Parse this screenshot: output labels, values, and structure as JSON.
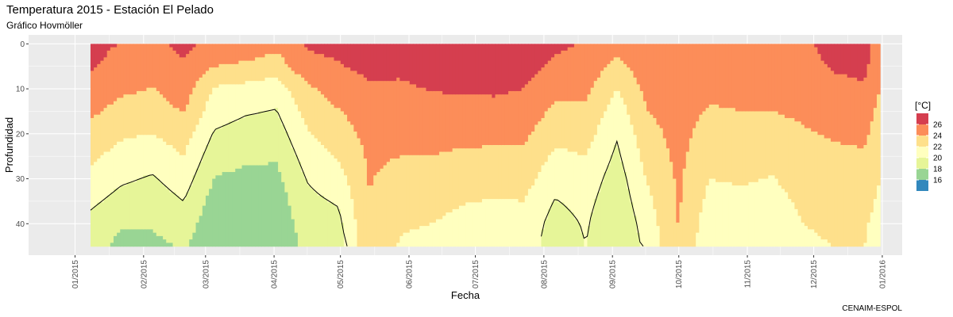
{
  "chart_data": {
    "type": "heatmap",
    "subtype": "filled-contour (Hovmöller)",
    "title": "Temperatura 2015 - Estación El Pelado",
    "subtitle": "Gráfico Hovmöller",
    "xlabel": "Fecha",
    "ylabel": "Profundidad",
    "caption": "CENAIM-ESPOL",
    "x_ticks": [
      "01/2015",
      "02/2015",
      "03/2015",
      "04/2015",
      "05/2015",
      "06/2015",
      "07/2015",
      "08/2015",
      "09/2015",
      "10/2015",
      "11/2015",
      "12/2015",
      "01/2016"
    ],
    "y_ticks": [
      0,
      10,
      20,
      30,
      40
    ],
    "y_reversed": true,
    "xlim": [
      "2014-12-11",
      "2016-01-10"
    ],
    "ylim": [
      47,
      -2
    ],
    "data_x_range": [
      "2015-01-08",
      "2015-12-31"
    ],
    "data_y_range": [
      0,
      45
    ],
    "grid": true,
    "legend": {
      "title": "[°C]",
      "position": "right",
      "labels": [
        "26",
        "24",
        "22",
        "20",
        "18",
        "16"
      ],
      "colors": [
        "#D53E4F",
        "#FC8D59",
        "#FEE08B",
        "#FFFFBF",
        "#E6F598",
        "#99D594",
        "#3288BD"
      ]
    },
    "band_colors": [
      "#3288BD",
      "#99D594",
      "#E6F598",
      "#FFFFBF",
      "#FEE08B",
      "#FC8D59",
      "#D53E4F"
    ],
    "band_bounds": [
      16,
      18,
      20,
      22,
      24,
      26
    ],
    "contour_level": 20,
    "times": [
      "2015-01-08",
      "2015-01-22",
      "2015-02-05",
      "2015-02-19",
      "2015-03-05",
      "2015-03-19",
      "2015-04-02",
      "2015-04-16",
      "2015-04-30",
      "2015-05-14",
      "2015-05-28",
      "2015-06-11",
      "2015-06-25",
      "2015-07-09",
      "2015-07-23",
      "2015-08-06",
      "2015-08-20",
      "2015-09-03",
      "2015-09-17",
      "2015-10-01",
      "2015-10-15",
      "2015-10-29",
      "2015-11-12",
      "2015-11-26",
      "2015-12-10",
      "2015-12-24",
      "2015-12-31"
    ],
    "depths": [
      0,
      5,
      10,
      15,
      20,
      25,
      30,
      35,
      40,
      45
    ],
    "values": [
      [
        26.6,
        26.2,
        25.4,
        24.4,
        23.4,
        22.4,
        21.4,
        20.4,
        19.4,
        18.6
      ],
      [
        25.9,
        25.3,
        24.4,
        23.3,
        22.3,
        21.3,
        20.3,
        19.3,
        18.2,
        17.5
      ],
      [
        25.6,
        24.8,
        23.9,
        23.1,
        22.0,
        20.8,
        19.8,
        18.9,
        18.2,
        17.5
      ],
      [
        26.4,
        25.8,
        25.0,
        24.1,
        23.0,
        22.0,
        21.0,
        20.0,
        19.0,
        18.2
      ],
      [
        25.6,
        24.0,
        21.8,
        20.9,
        19.8,
        18.8,
        17.9,
        17.2,
        16.8,
        16.6
      ],
      [
        25.4,
        23.6,
        21.4,
        20.2,
        19.2,
        18.3,
        17.6,
        17.0,
        16.6,
        16.5
      ],
      [
        24.6,
        23.0,
        20.9,
        19.9,
        19.0,
        18.2,
        17.5,
        17.0,
        16.6,
        16.5
      ],
      [
        26.2,
        25.4,
        23.6,
        22.7,
        21.8,
        20.9,
        20.1,
        19.5,
        19.0,
        18.6
      ],
      [
        26.6,
        25.8,
        24.8,
        23.9,
        23.1,
        22.2,
        21.2,
        20.2,
        19.4,
        18.8
      ],
      [
        27.2,
        26.6,
        25.6,
        25.0,
        24.6,
        24.3,
        24.1,
        24.0,
        23.9,
        23.8
      ],
      [
        27.0,
        26.4,
        25.7,
        25.2,
        24.6,
        24.0,
        23.4,
        22.8,
        22.2,
        21.8
      ],
      [
        27.4,
        26.8,
        26.1,
        25.4,
        24.7,
        24.0,
        23.3,
        22.6,
        22.0,
        21.6
      ],
      [
        27.6,
        27.0,
        26.2,
        25.3,
        24.5,
        23.7,
        22.9,
        22.1,
        21.5,
        21.2
      ],
      [
        27.6,
        27.1,
        26.3,
        25.4,
        24.5,
        23.6,
        22.7,
        21.9,
        21.3,
        21.0
      ],
      [
        27.2,
        26.7,
        26.0,
        25.2,
        24.4,
        23.6,
        22.8,
        22.0,
        21.4,
        21.2
      ],
      [
        26.4,
        25.6,
        24.6,
        23.6,
        22.6,
        21.6,
        20.7,
        19.9,
        19.2,
        18.8
      ],
      [
        25.8,
        25.2,
        24.4,
        23.6,
        22.8,
        22.0,
        21.2,
        20.6,
        20.2,
        20.0
      ],
      [
        24.6,
        23.4,
        22.0,
        21.0,
        20.2,
        19.6,
        19.0,
        18.6,
        18.2,
        18.0
      ],
      [
        25.6,
        25.2,
        24.6,
        24.0,
        23.4,
        22.8,
        22.2,
        21.6,
        21.0,
        20.6
      ],
      [
        25.6,
        25.4,
        25.1,
        24.8,
        24.6,
        24.5,
        24.3,
        24.2,
        24.1,
        24.0
      ],
      [
        25.4,
        25.0,
        24.4,
        23.8,
        23.2,
        22.6,
        22.0,
        21.4,
        20.8,
        20.4
      ],
      [
        25.6,
        25.2,
        24.6,
        24.0,
        23.4,
        22.8,
        22.2,
        21.6,
        21.0,
        20.8
      ],
      [
        25.6,
        25.2,
        24.6,
        24.0,
        23.3,
        22.6,
        21.9,
        21.3,
        20.8,
        20.6
      ],
      [
        25.7,
        25.3,
        24.8,
        24.3,
        23.8,
        23.3,
        22.8,
        22.4,
        22.0,
        21.8
      ],
      [
        26.6,
        26.2,
        25.5,
        24.8,
        24.2,
        23.6,
        23.0,
        22.6,
        22.2,
        22.0
      ],
      [
        26.8,
        26.4,
        25.8,
        25.0,
        24.4,
        23.8,
        23.2,
        22.7,
        22.2,
        22.0
      ],
      [
        25.0,
        24.6,
        24.0,
        23.4,
        22.9,
        22.4,
        22.0,
        21.6,
        21.4,
        21.2
      ]
    ]
  }
}
